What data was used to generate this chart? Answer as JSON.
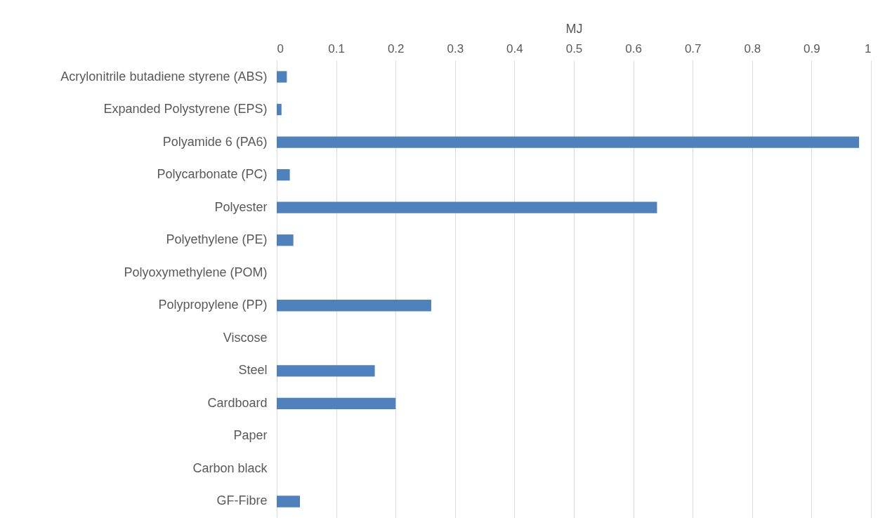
{
  "chart_data": {
    "type": "bar",
    "orientation": "horizontal",
    "xlabel": "MJ",
    "categories": [
      "Acrylonitrile butadiene styrene (ABS)",
      "Expanded Polystyrene (EPS)",
      "Polyamide 6 (PA6)",
      "Polycarbonate (PC)",
      "Polyester",
      "Polyethylene (PE)",
      "Polyoxymethylene (POM)",
      "Polypropylene (PP)",
      "Viscose",
      "Steel",
      "Cardboard",
      "Paper",
      "Carbon black",
      "GF-Fibre"
    ],
    "values": [
      0.017,
      0.008,
      0.98,
      0.022,
      0.64,
      0.028,
      null,
      0.26,
      null,
      0.165,
      0.2,
      null,
      null,
      0.039
    ],
    "color": "#4f81bd",
    "xlim": [
      0,
      1
    ],
    "xticks": [
      0,
      0.1,
      0.2,
      0.3,
      0.4,
      0.5,
      0.6,
      0.7,
      0.8,
      0.9,
      1
    ],
    "grid": "x"
  }
}
